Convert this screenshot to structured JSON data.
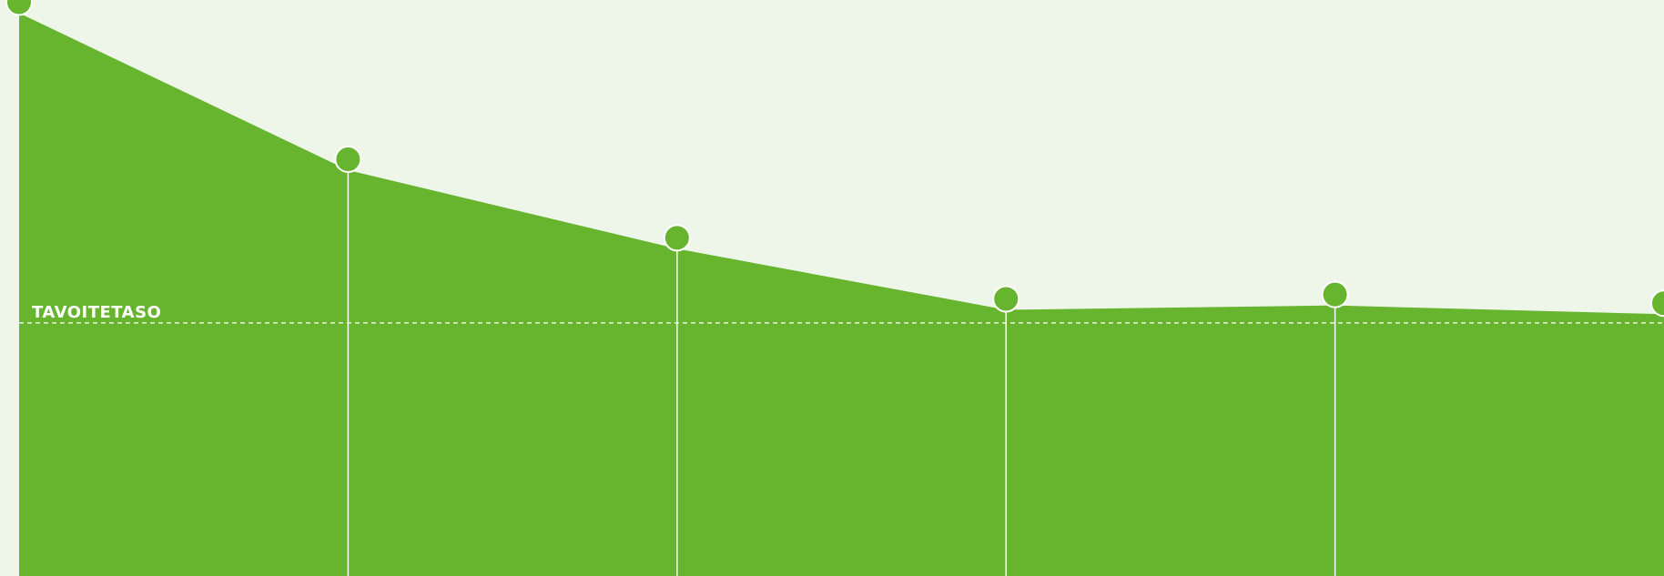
{
  "chart_data": {
    "type": "area",
    "title": "",
    "xlabel": "",
    "ylabel": "",
    "points": [
      {
        "x": 1,
        "y": 100
      },
      {
        "x": 2,
        "y": 64
      },
      {
        "x": 3,
        "y": 46
      },
      {
        "x": 4,
        "y": 32
      },
      {
        "x": 5,
        "y": 33
      },
      {
        "x": 6,
        "y": 31
      }
    ],
    "target": {
      "label": "TAVOITETASO",
      "value": 29
    },
    "xlim": [
      1,
      6
    ],
    "ylim": [
      -29,
      103
    ],
    "colors": {
      "background": "#eef6e9",
      "area": "#67b42e",
      "marker": "#67b42e",
      "marker_stroke": "#ffffff",
      "guide": "#ffffff"
    },
    "grid": false,
    "legend": "none"
  }
}
